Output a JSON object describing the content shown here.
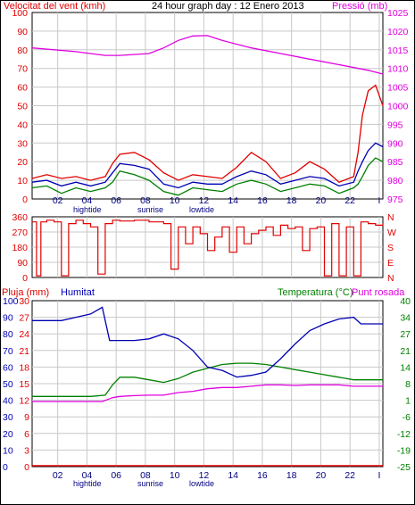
{
  "header": {
    "left_label": "Velocitat del vent (kmh)",
    "center_label": "24 hour graph day : 12 Enero 2013",
    "right_label": "Pressió (mb)"
  },
  "colors": {
    "wind_avg": "#0000b4",
    "wind_gust": "#e00000",
    "wind_low": "#008000",
    "pressure": "#e000e0",
    "direction": "#e00000",
    "rain": "#e00000",
    "humidity": "#0000b4",
    "temperature": "#008000",
    "dewpoint": "#e000e0",
    "grid": "#c8c8c8",
    "axis": "#000000"
  },
  "time_axis": {
    "hour_labels": [
      "02",
      "04",
      "06",
      "08",
      "10",
      "12",
      "14",
      "16",
      "18",
      "20",
      "22",
      "I"
    ],
    "events": [
      "hightide",
      "sunrise",
      "lowtide"
    ],
    "events_bottom": [
      "hightide",
      "sunrise",
      "lowtide"
    ]
  },
  "chart_data": [
    {
      "type": "line",
      "title": "24 hour graph day : 12 Enero 2013",
      "ylabel": "Velocitat del vent (kmh)",
      "y2label": "Pressió (mb)",
      "ylim": [
        0,
        100
      ],
      "y2lim": [
        975,
        1025
      ],
      "yticks": [
        "0",
        "10",
        "20",
        "30",
        "40",
        "50",
        "60",
        "70",
        "80",
        "90",
        "100"
      ],
      "y2ticks": [
        "975",
        "980",
        "985",
        "990",
        "995",
        "1000",
        "1005",
        "1010",
        "1015",
        "1020",
        "1025"
      ],
      "grid": true,
      "series": [
        {
          "name": "Pressió (mb)",
          "axis": "right",
          "x": [
            0,
            3,
            5,
            6,
            8,
            9,
            10,
            11,
            12,
            13,
            15,
            17,
            19,
            21,
            23,
            24
          ],
          "values": [
            1015.5,
            1014.5,
            1013.5,
            1013.5,
            1014,
            1015.5,
            1017.5,
            1018.7,
            1018.8,
            1017.5,
            1015.5,
            1014,
            1012.5,
            1011,
            1009.5,
            1008.5
          ]
        },
        {
          "x": [
            0,
            1,
            2,
            3,
            4,
            5,
            5.5,
            6,
            7,
            8,
            9,
            10,
            11,
            12,
            13,
            14,
            15,
            16,
            17,
            18,
            19,
            20,
            21,
            22,
            22.3,
            22.6,
            23,
            23.5,
            24
          ],
          "values": [
            9,
            10,
            7,
            9,
            7,
            9,
            14,
            19,
            18,
            16,
            8,
            6,
            9,
            8,
            8,
            12,
            15,
            13,
            8,
            10,
            12,
            11,
            7,
            9,
            15,
            20,
            26,
            30,
            28
          ]
        },
        {
          "x": [
            0,
            1,
            2,
            3,
            4,
            5,
            5.5,
            6,
            7,
            8,
            9,
            10,
            11,
            12,
            13,
            14,
            15,
            16,
            17,
            18,
            19,
            20,
            21,
            22,
            22.3,
            22.6,
            23,
            23.5,
            24
          ],
          "values": [
            11,
            13,
            11,
            12,
            10,
            12,
            19,
            24,
            25,
            21,
            14,
            10,
            13,
            12,
            11,
            17,
            25,
            20,
            11,
            14,
            20,
            16,
            9,
            12,
            25,
            45,
            58,
            61,
            50
          ]
        },
        {
          "x": [
            0,
            1,
            2,
            3,
            4,
            5,
            5.5,
            6,
            7,
            8,
            9,
            10,
            11,
            12,
            13,
            14,
            15,
            16,
            17,
            18,
            19,
            20,
            21,
            22,
            22.3,
            22.6,
            23,
            23.5,
            24
          ],
          "values": [
            6,
            7,
            3,
            6,
            4,
            6,
            9,
            15,
            13,
            10,
            4,
            2,
            6,
            5,
            4,
            8,
            10,
            8,
            4,
            6,
            8,
            7,
            3,
            6,
            8,
            12,
            18,
            22,
            20
          ]
        }
      ]
    },
    {
      "type": "line",
      "ylim": [
        0,
        360
      ],
      "yticks": [
        "0",
        "90",
        "180",
        "270",
        "360"
      ],
      "y2ticks": [
        "N",
        "W",
        "S",
        "E",
        "N"
      ],
      "grid": true,
      "series": [
        {
          "x": [
            0,
            0.3,
            0.6,
            1,
            1.5,
            2,
            2.5,
            3,
            3.5,
            4,
            4.5,
            5,
            5.5,
            6,
            7,
            8,
            9,
            9.5,
            10,
            10.5,
            11,
            11.5,
            12,
            12.5,
            13,
            13.5,
            14,
            14.5,
            15,
            15.5,
            16,
            16.5,
            17,
            17.5,
            18,
            18.5,
            19,
            19.5,
            20,
            20.5,
            21,
            21.5,
            22,
            22.5,
            23,
            23.5,
            24
          ],
          "values": [
            330,
            10,
            330,
            340,
            330,
            10,
            320,
            340,
            320,
            300,
            20,
            320,
            340,
            335,
            340,
            330,
            320,
            50,
            300,
            200,
            300,
            260,
            160,
            240,
            300,
            150,
            300,
            200,
            260,
            280,
            300,
            250,
            310,
            290,
            300,
            160,
            290,
            300,
            10,
            320,
            10,
            300,
            10,
            330,
            320,
            310,
            320
          ]
        }
      ]
    },
    {
      "type": "line",
      "ylabel": "Pluja (mm)",
      "y2label": "Temperatura (°C)",
      "yticks": [
        "0",
        "3",
        "6",
        "9",
        "12",
        "15",
        "18",
        "21",
        "24",
        "27",
        "30"
      ],
      "humidity_ticks": [
        "0",
        "10",
        "20",
        "30",
        "40",
        "50",
        "60",
        "70",
        "80",
        "90",
        "100"
      ],
      "temp_ticks": [
        "-25",
        "-19",
        "-12",
        "-6",
        "1",
        "8",
        "14",
        "21",
        "27",
        "34",
        "40"
      ],
      "ylim": [
        0,
        30
      ],
      "humidity_lim": [
        0,
        100
      ],
      "temp_lim": [
        -25,
        40
      ],
      "grid": true,
      "series": [
        {
          "name": "Pluja (mm)",
          "x": [
            0,
            24
          ],
          "values": [
            0,
            0
          ]
        },
        {
          "name": "Humitat",
          "x": [
            0,
            1,
            2,
            3,
            4,
            4.8,
            5,
            5.3,
            6,
            7,
            8,
            9,
            10,
            11,
            12,
            13,
            14,
            15,
            16,
            17,
            18,
            19,
            20,
            21,
            22,
            22.5,
            23,
            24
          ],
          "values": [
            88,
            88,
            88,
            90,
            92,
            96,
            88,
            76,
            76,
            76,
            77,
            80,
            77,
            70,
            60,
            58,
            54,
            55,
            57,
            65,
            74,
            82,
            86,
            89,
            90,
            86,
            86,
            86
          ]
        },
        {
          "name": "Temperatura (°C)",
          "x": [
            0,
            2,
            4,
            5,
            5.5,
            6,
            7,
            8,
            9,
            10,
            11,
            12,
            13,
            14,
            15,
            16,
            17,
            18,
            19,
            20,
            21,
            22,
            23,
            24
          ],
          "values": [
            2.5,
            2.5,
            2.5,
            3,
            7,
            10,
            10,
            9,
            8,
            9.5,
            12,
            13.5,
            15,
            15.5,
            15.5,
            15,
            14,
            13,
            12,
            11,
            10,
            9,
            9,
            9
          ]
        },
        {
          "name": "Punt rosada",
          "x": [
            0,
            2,
            3,
            4,
            4.8,
            5.5,
            6,
            7,
            8,
            9,
            10,
            11,
            12,
            13,
            14,
            15,
            16,
            17,
            18,
            19,
            20,
            21,
            22,
            23,
            24
          ],
          "values": [
            0.5,
            0.5,
            0.5,
            0.5,
            0.5,
            2,
            2.5,
            2.8,
            3,
            3,
            4,
            4.5,
            5.5,
            6,
            6,
            6.5,
            7,
            7,
            6.8,
            7,
            7,
            7,
            6.5,
            6.5,
            6.5
          ]
        }
      ]
    }
  ]
}
